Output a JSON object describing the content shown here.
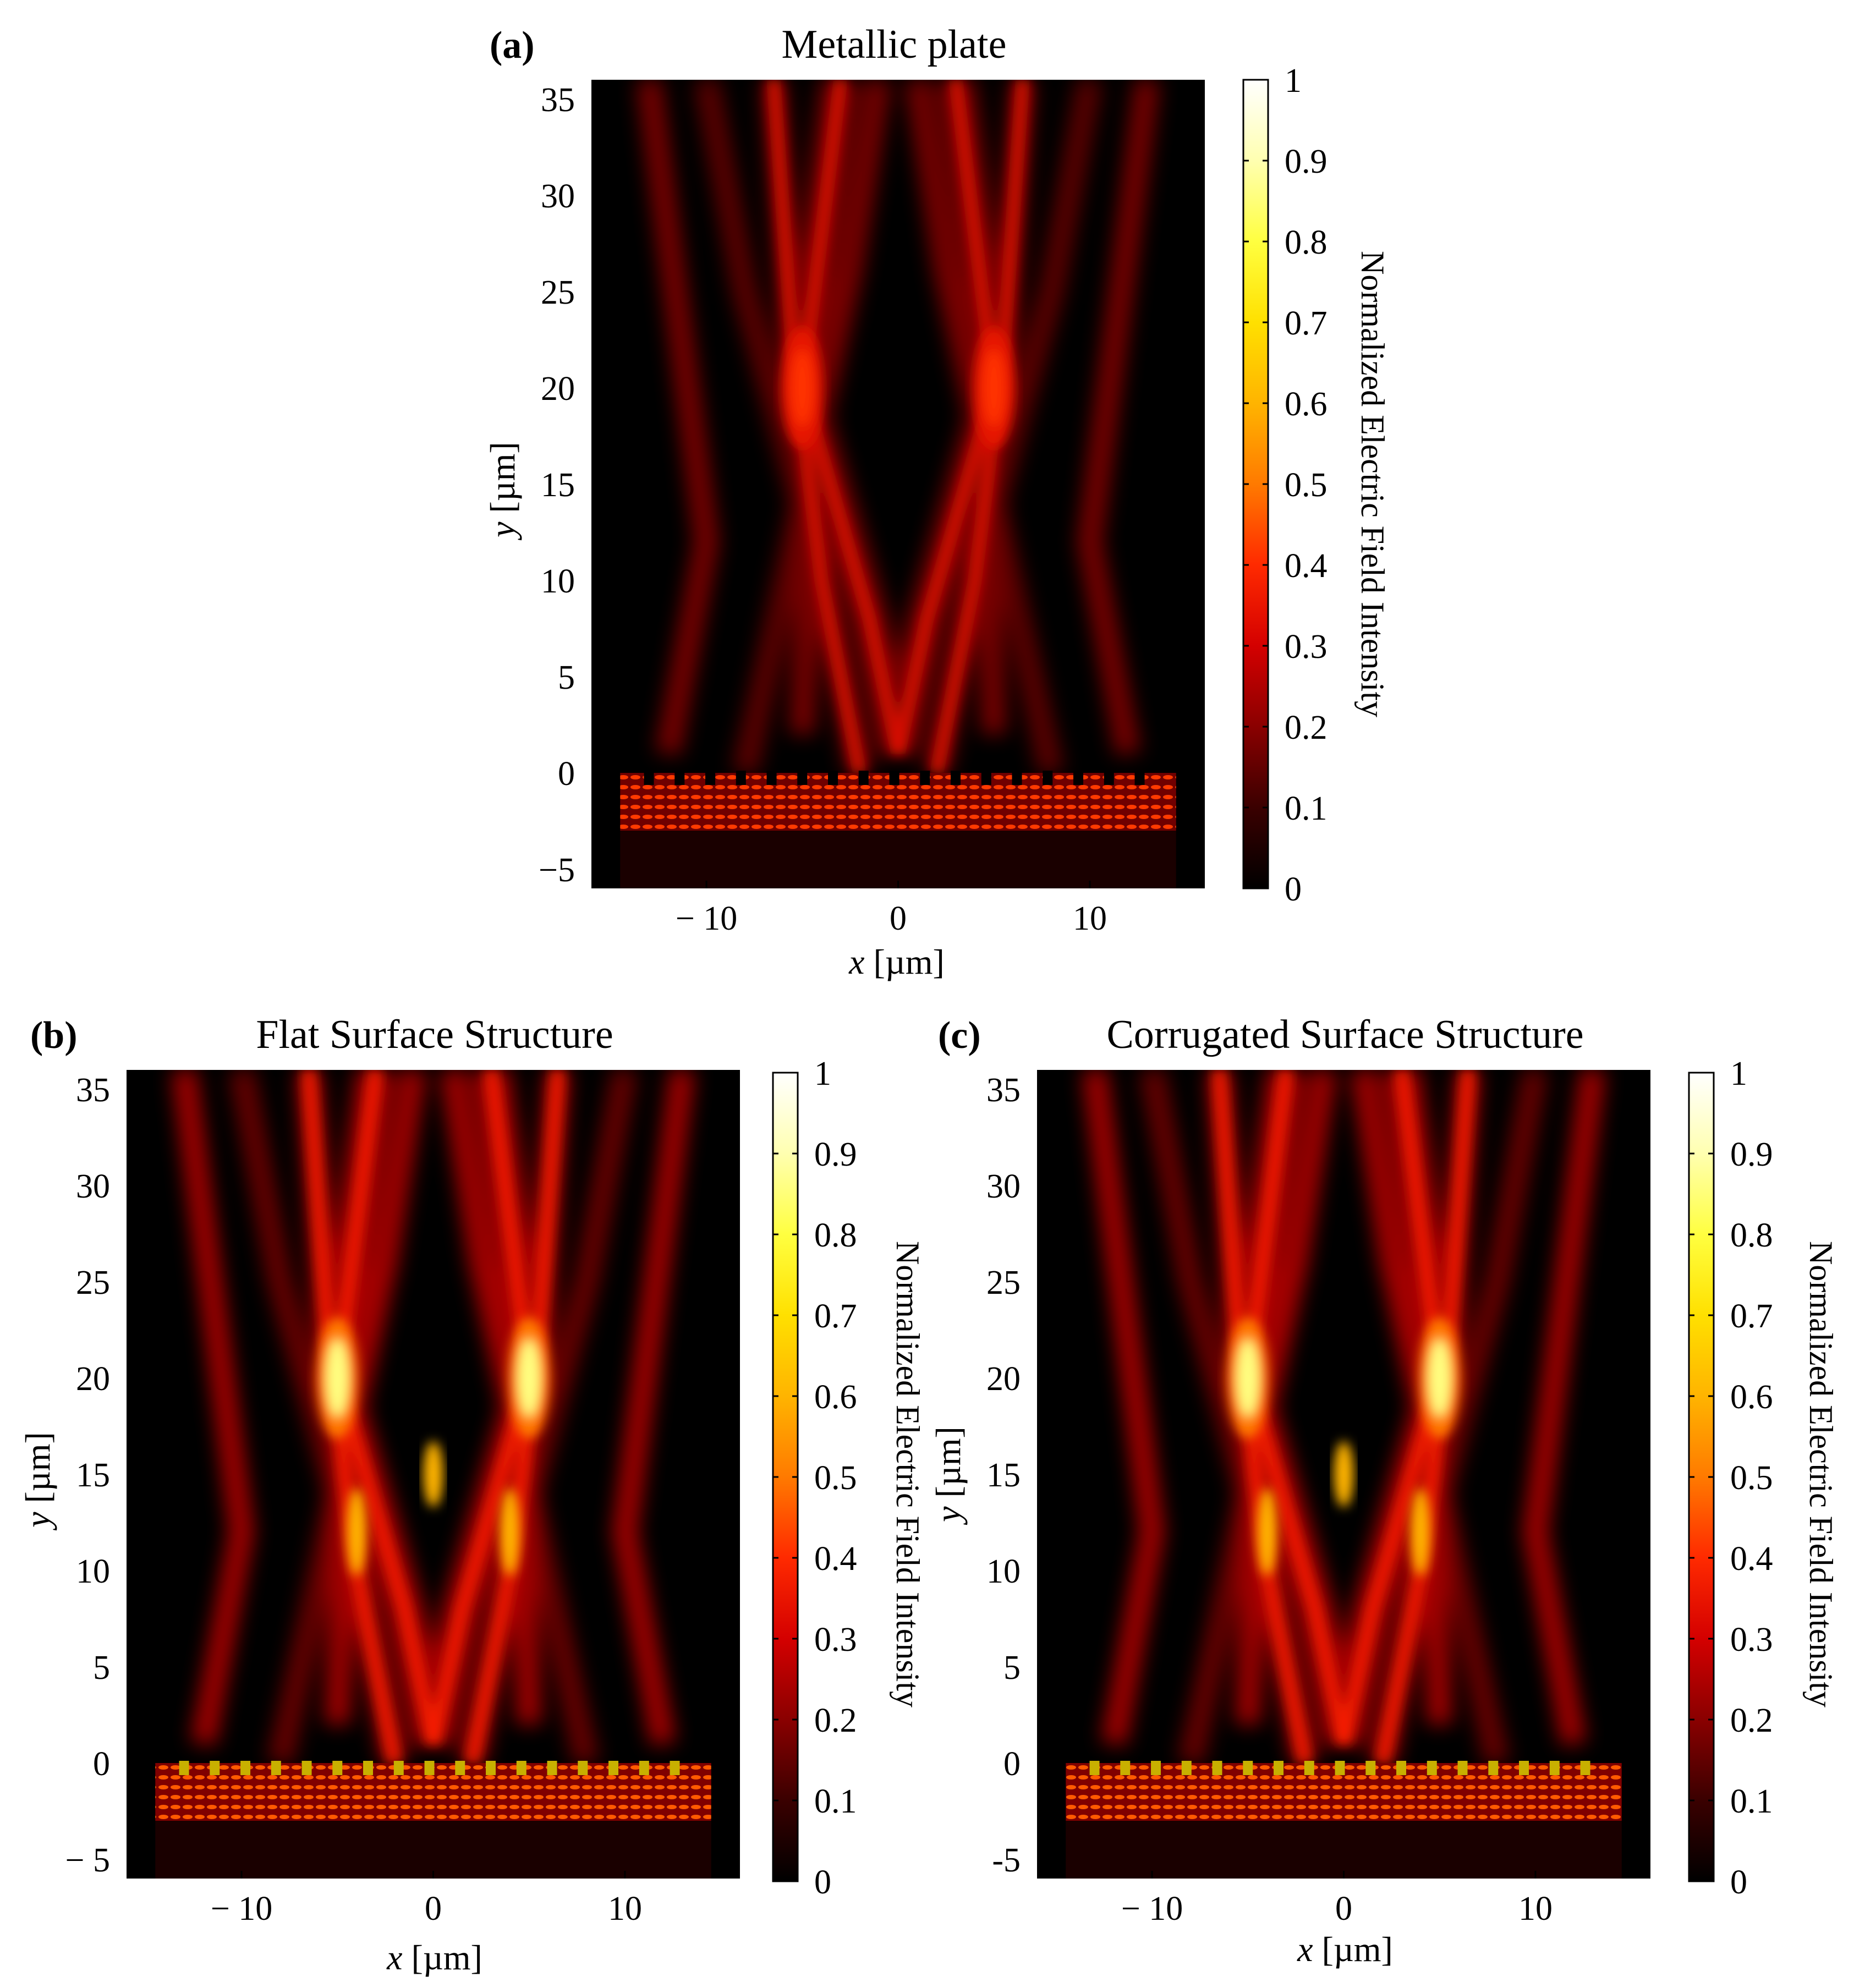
{
  "figure": {
    "panels": [
      {
        "letter": "(a)",
        "title": "Metallic plate",
        "xlabel_var": "x",
        "xlabel_unit": " [µm]",
        "ylabel_var": "y",
        "ylabel_unit": " [µm]",
        "colorbar_label": "Normalized Electric Field Intensity",
        "x_ticks": [
          "− 10",
          "0",
          "10"
        ],
        "y_ticks": [
          "35",
          "30",
          "25",
          "20",
          "15",
          "10",
          "5",
          "0",
          "−5"
        ],
        "cbar_ticks": [
          "1",
          "0.9",
          "0.8",
          "0.7",
          "0.6",
          "0.5",
          "0.4",
          "0.3",
          "0.2",
          "0.1",
          "0"
        ]
      },
      {
        "letter": "(b)",
        "title": "Flat Surface Structure",
        "xlabel_var": "x",
        "xlabel_unit": " [µm]",
        "ylabel_var": "y",
        "ylabel_unit": " [µm]",
        "colorbar_label": "Normalized Electric Field Intensity",
        "x_ticks": [
          "− 10",
          "0",
          "10"
        ],
        "y_ticks": [
          "35",
          "30",
          "25",
          "20",
          "15",
          "10",
          "5",
          "0",
          "− 5"
        ],
        "cbar_ticks": [
          "1",
          "0.9",
          "0.8",
          "0.7",
          "0.6",
          "0.5",
          "0.4",
          "0.3",
          "0.2",
          "0.1",
          "0"
        ]
      },
      {
        "letter": "(c)",
        "title": "Corrugated Surface Structure",
        "xlabel_var": "x",
        "xlabel_unit": " [µm]",
        "ylabel_var": "y",
        "ylabel_unit": " [µm]",
        "colorbar_label": "Normalized Electric Field Intensity",
        "x_ticks": [
          "− 10",
          "0",
          "10"
        ],
        "y_ticks": [
          "35",
          "30",
          "25",
          "20",
          "15",
          "10",
          "5",
          "0",
          "-5"
        ],
        "cbar_ticks": [
          "1",
          "0.9",
          "0.8",
          "0.7",
          "0.6",
          "0.5",
          "0.4",
          "0.3",
          "0.2",
          "0.1",
          "0"
        ]
      }
    ]
  },
  "chart_data": [
    {
      "type": "heatmap",
      "title": "Metallic plate",
      "xlabel": "x [µm]",
      "ylabel": "y [µm]",
      "xlim": [
        -16,
        16
      ],
      "ylim": [
        -6,
        36
      ],
      "colorbar": {
        "label": "Normalized Electric Field Intensity",
        "range": [
          0,
          1
        ],
        "colormap": "hot"
      },
      "x_ticks": [
        -10,
        0,
        10
      ],
      "y_ticks": [
        -5,
        0,
        5,
        10,
        15,
        20,
        25,
        30,
        35
      ],
      "features": {
        "peak_intensity": 0.4,
        "foci_y": 20,
        "foci_x": [
          -5,
          5
        ],
        "structure_y_range": [
          -3,
          0
        ]
      }
    },
    {
      "type": "heatmap",
      "title": "Flat Surface Structure",
      "xlabel": "x [µm]",
      "ylabel": "y [µm]",
      "xlim": [
        -16,
        16
      ],
      "ylim": [
        -6,
        36
      ],
      "colorbar": {
        "label": "Normalized Electric Field Intensity",
        "range": [
          0,
          1
        ],
        "colormap": "hot"
      },
      "x_ticks": [
        -10,
        0,
        10
      ],
      "y_ticks": [
        -5,
        0,
        5,
        10,
        15,
        20,
        25,
        30,
        35
      ],
      "features": {
        "peak_intensity": 0.95,
        "foci_y": 20,
        "foci_x": [
          -5,
          5
        ],
        "central_spot_y": 15,
        "structure_y_range": [
          -3,
          0
        ]
      }
    },
    {
      "type": "heatmap",
      "title": "Corrugated Surface Structure",
      "xlabel": "x [µm]",
      "ylabel": "y [µm]",
      "xlim": [
        -16,
        16
      ],
      "ylim": [
        -6,
        36
      ],
      "colorbar": {
        "label": "Normalized Electric Field Intensity",
        "range": [
          0,
          1
        ],
        "colormap": "hot"
      },
      "x_ticks": [
        -10,
        0,
        10
      ],
      "y_ticks": [
        -5,
        0,
        5,
        10,
        15,
        20,
        25,
        30,
        35
      ],
      "features": {
        "peak_intensity": 0.95,
        "foci_y": 20,
        "foci_x": [
          -5,
          5
        ],
        "central_spot_y": 15,
        "structure_y_range": [
          -3,
          0
        ]
      }
    }
  ],
  "colors": {
    "plot_background": "#000000",
    "hot_colormap": [
      "#000000",
      "#3a0000",
      "#8a0000",
      "#d40000",
      "#ff2a00",
      "#ff7a00",
      "#ffb400",
      "#ffe000",
      "#ffff40",
      "#ffffb0",
      "#ffffff"
    ]
  }
}
